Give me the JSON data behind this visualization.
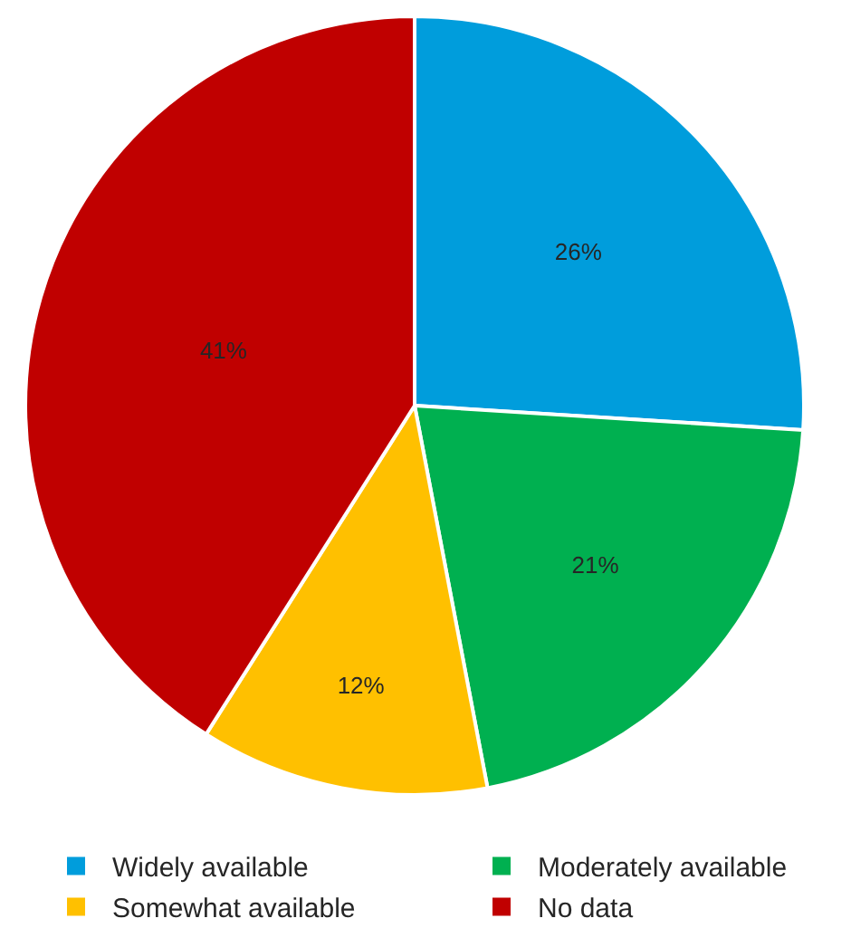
{
  "chart_data": {
    "type": "pie",
    "categories": [
      "Widely available",
      "Moderately available",
      "Somewhat available",
      "No data"
    ],
    "values": [
      26,
      21,
      12,
      41
    ],
    "value_labels": [
      "26%",
      "21%",
      "12%",
      "41%"
    ],
    "colors": [
      "#009ddc",
      "#00b050",
      "#ffc000",
      "#c00000"
    ],
    "legend": "bottom"
  }
}
